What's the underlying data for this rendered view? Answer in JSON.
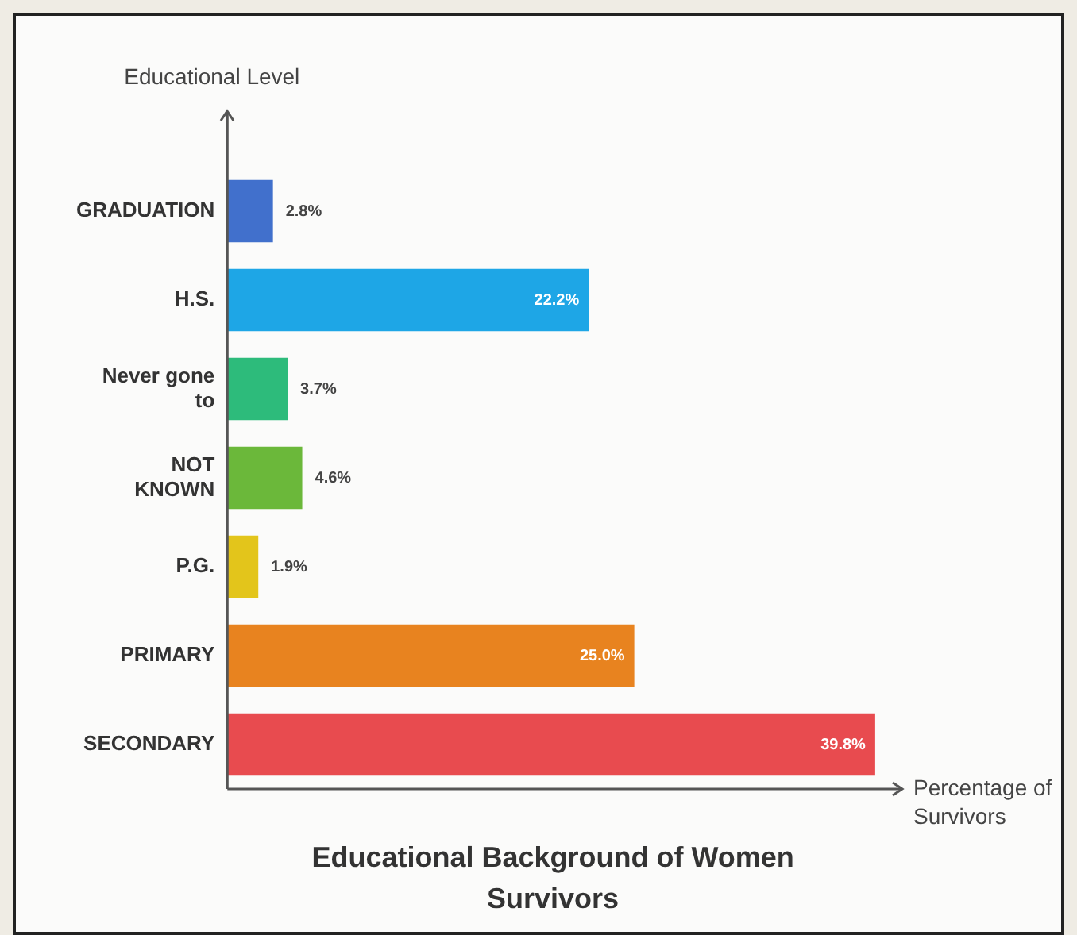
{
  "chart_data": {
    "type": "bar",
    "orientation": "horizontal",
    "title": "Educational Background of Women Survivors",
    "xlabel": "Percentage of Survivors",
    "ylabel": "Educational Level",
    "categories": [
      "GRADUATION",
      "H.S.",
      "Never gone to",
      "NOT KNOWN",
      "P.G.",
      "PRIMARY",
      "SECONDARY"
    ],
    "values": [
      2.8,
      22.2,
      3.7,
      4.6,
      1.9,
      25.0,
      39.8
    ],
    "colors": [
      "#4170cc",
      "#1ea6e6",
      "#2dbb7b",
      "#6bb83a",
      "#e3c51b",
      "#e8831f",
      "#e84b4f"
    ],
    "value_labels": [
      "2.8%",
      "22.2%",
      "3.7%",
      "4.6%",
      "1.9%",
      "25.0%",
      "39.8%"
    ],
    "grid": false,
    "legend": false
  }
}
